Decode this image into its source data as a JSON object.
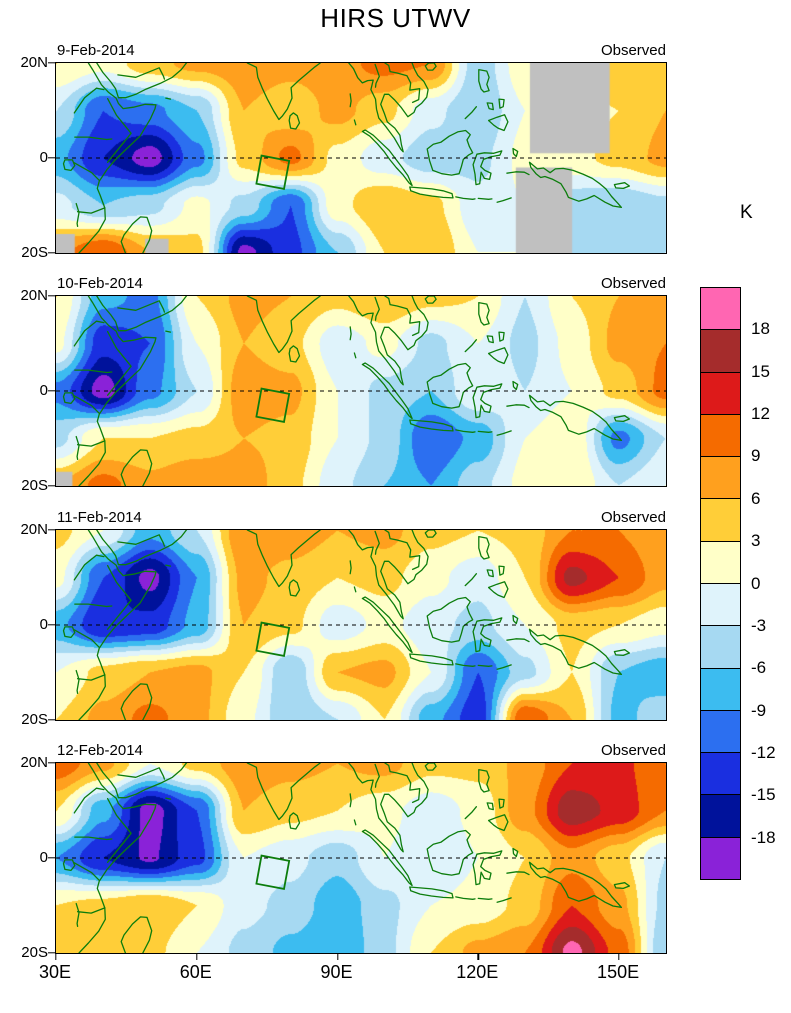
{
  "title": "HIRS UTWV",
  "colorbar": {
    "unit_label": "K",
    "tick_labels": [
      "18",
      "15",
      "12",
      "9",
      "6",
      "3",
      "0",
      "-3",
      "-6",
      "-9",
      "-12",
      "-15",
      "-18"
    ]
  },
  "axes": {
    "x_tick_labels": [
      "30E",
      "60E",
      "90E",
      "120E",
      "150E"
    ],
    "y_tick_labels": [
      "20N",
      "0",
      "20S"
    ]
  },
  "chart_data": {
    "type": "heatmap",
    "title": "HIRS UTWV",
    "units": "K",
    "lon_range": [
      30,
      160
    ],
    "lat_range": [
      -20,
      20
    ],
    "x_ticks": {
      "lons": [
        30,
        60,
        90,
        120,
        150
      ],
      "labels": [
        "30E",
        "60E",
        "90E",
        "120E",
        "150E"
      ]
    },
    "y_ticks": {
      "lats": [
        20,
        0,
        -20
      ],
      "labels": [
        "20N",
        "0",
        "20S"
      ]
    },
    "levels": [
      -18,
      -15,
      -12,
      -9,
      -6,
      -3,
      0,
      3,
      6,
      9,
      12,
      15,
      18
    ],
    "colors_low_to_high": [
      "#8A22D8",
      "#00129B",
      "#1A2FE0",
      "#2C6FF0",
      "#3CBCF0",
      "#A6D9F2",
      "#DFF3FB",
      "#FFFFC8",
      "#FFCE38",
      "#FFA01E",
      "#F56B00",
      "#DD1A1A",
      "#A52C2C",
      "#FF66B2"
    ],
    "missing_color": "#C0C0C0",
    "coastline_color": "#0C7D0C",
    "highlight_box": {
      "color": "#0C7D0C",
      "corners": [
        [
          79.7,
          -0.6
        ],
        [
          73.8,
          0.5
        ],
        [
          72.7,
          -5.4
        ],
        [
          78.6,
          -6.5
        ]
      ]
    },
    "grid_lons": [
      30,
      40,
      50,
      60,
      70,
      80,
      90,
      100,
      110,
      120,
      130,
      140,
      150,
      160
    ],
    "grid_lats": [
      20,
      10,
      0,
      -10,
      -20
    ],
    "panels": [
      {
        "date": "9-Feb-2014",
        "source": "Observed",
        "values": [
          [
            3,
            1,
            5,
            7,
            8,
            7,
            8,
            10,
            9,
            -5,
            2,
            3,
            6,
            5
          ],
          [
            -3,
            -12,
            -10,
            -6,
            6,
            4,
            7,
            4,
            -2,
            -6,
            0,
            2,
            3,
            6
          ],
          [
            -8,
            -15,
            -19.5,
            -10,
            4,
            10,
            2,
            -2,
            -5,
            -4,
            1,
            2,
            4,
            7
          ],
          [
            -2,
            -6,
            -4,
            1,
            -4,
            -12,
            2,
            6,
            4,
            -2,
            0,
            -5,
            -6,
            -4
          ],
          [
            8,
            12,
            6,
            4,
            -19,
            -13,
            -6,
            3,
            6,
            0,
            0,
            -3,
            -6,
            -3
          ]
        ],
        "missing_boxes": [
          {
            "lon": [
              131,
              148
            ],
            "lat": [
              1,
              20
            ]
          },
          {
            "lon": [
              128,
              140
            ],
            "lat": [
              -20,
              -2
            ]
          },
          {
            "lon": [
              30,
              34
            ],
            "lat": [
              -20,
              -16
            ]
          },
          {
            "lon": [
              49,
              54
            ],
            "lat": [
              -20,
              -17
            ]
          }
        ]
      },
      {
        "date": "10-Feb-2014",
        "source": "Observed",
        "values": [
          [
            3,
            -8,
            -10,
            3,
            7,
            6,
            4,
            6,
            4,
            3,
            -3,
            3,
            6,
            8
          ],
          [
            1,
            -14,
            -12,
            0,
            6,
            4,
            -2,
            1,
            -4,
            0,
            -4,
            1,
            7,
            9
          ],
          [
            -10,
            -19.5,
            -10,
            -3,
            8,
            7,
            0,
            -4,
            -6,
            0,
            -3,
            0,
            4,
            10
          ],
          [
            -4,
            3,
            3,
            4,
            6,
            5,
            0,
            -4,
            -12,
            -8,
            0,
            3,
            -10,
            -3
          ],
          [
            6,
            10,
            7,
            9,
            8,
            4,
            -2,
            -6,
            -9,
            -4,
            1,
            3,
            -3,
            0
          ]
        ],
        "missing_boxes": [
          {
            "lon": [
              30,
              33.5
            ],
            "lat": [
              -20,
              -17
            ]
          }
        ]
      },
      {
        "date": "11-Feb-2014",
        "source": "Observed",
        "values": [
          [
            4,
            0,
            -8,
            -3,
            9,
            8,
            6,
            7,
            4,
            3,
            4,
            9,
            9,
            6
          ],
          [
            1,
            -12,
            -19,
            -9,
            7,
            5,
            3,
            4,
            1,
            -2,
            3,
            16,
            12,
            7
          ],
          [
            -8,
            -15,
            -14,
            -8,
            6,
            4,
            -2,
            1,
            -2,
            -4,
            0,
            4,
            3,
            1
          ],
          [
            0,
            4,
            6,
            7,
            3,
            -6,
            6,
            7,
            0,
            -12,
            -4,
            3,
            -6,
            -8
          ],
          [
            3,
            7,
            10,
            7,
            1,
            -6,
            -3,
            3,
            -8,
            -14,
            12,
            6,
            -7,
            -4
          ]
        ],
        "missing_boxes": []
      },
      {
        "date": "12-Feb-2014",
        "source": "Observed",
        "values": [
          [
            11,
            7,
            0,
            4,
            8,
            7,
            6,
            7,
            4,
            4,
            7,
            12,
            13,
            9
          ],
          [
            3,
            -8,
            -19.5,
            -12,
            6,
            4,
            3,
            1,
            -2,
            1,
            8,
            17,
            14,
            9
          ],
          [
            -9,
            -15,
            -18.5,
            -13,
            0,
            -2,
            -5,
            0,
            -3,
            0,
            3,
            8,
            4,
            -3
          ],
          [
            3,
            4,
            6,
            3,
            -2,
            -4,
            -8,
            -4,
            0,
            1,
            4,
            12,
            7,
            -4
          ],
          [
            4,
            6,
            4,
            0,
            -4,
            -7,
            -9,
            -4,
            3,
            7,
            9,
            19,
            11,
            -6
          ]
        ],
        "missing_boxes": []
      }
    ]
  }
}
